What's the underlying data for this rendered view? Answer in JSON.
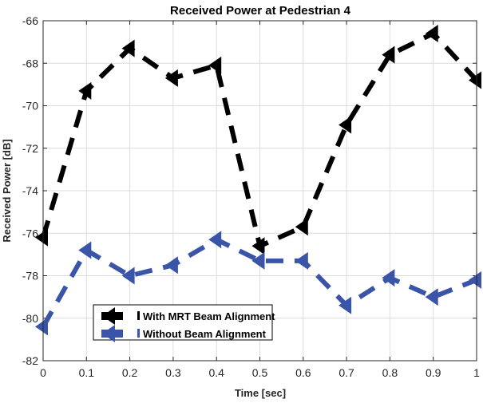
{
  "chart_data": {
    "type": "line",
    "title": "Received Power at Pedestrian 4",
    "xlabel": "Time [sec]",
    "ylabel": "Received Power [dB]",
    "xlim": [
      0,
      1
    ],
    "ylim": [
      -82,
      -66
    ],
    "grid": true,
    "x": [
      0,
      0.1,
      0.2,
      0.3,
      0.4,
      0.5,
      0.6,
      0.7,
      0.8,
      0.9,
      1.0
    ],
    "xticks": [
      "0",
      "0.1",
      "0.2",
      "0.3",
      "0.4",
      "0.5",
      "0.6",
      "0.7",
      "0.8",
      "0.9",
      "1"
    ],
    "yticks": [
      "-82",
      "-80",
      "-78",
      "-76",
      "-74",
      "-72",
      "-70",
      "-68",
      "-66"
    ],
    "legend_placement": "bottom-left",
    "series": [
      {
        "name": "With MRT Beam Alignment",
        "color": "#000000",
        "marker": "triangle-left",
        "line": "dashed",
        "values": [
          -76.2,
          -69.3,
          -67.3,
          -68.7,
          -68.1,
          -76.6,
          -75.7,
          -70.9,
          -67.6,
          -66.6,
          -68.8
        ]
      },
      {
        "name": "Without Beam Alignment",
        "color": "#3a55a8",
        "marker": "triangle-left",
        "line": "dashed",
        "values": [
          -80.4,
          -76.8,
          -78.0,
          -77.5,
          -76.3,
          -77.3,
          -77.3,
          -79.4,
          -78.1,
          -79.0,
          -78.2
        ]
      }
    ]
  }
}
